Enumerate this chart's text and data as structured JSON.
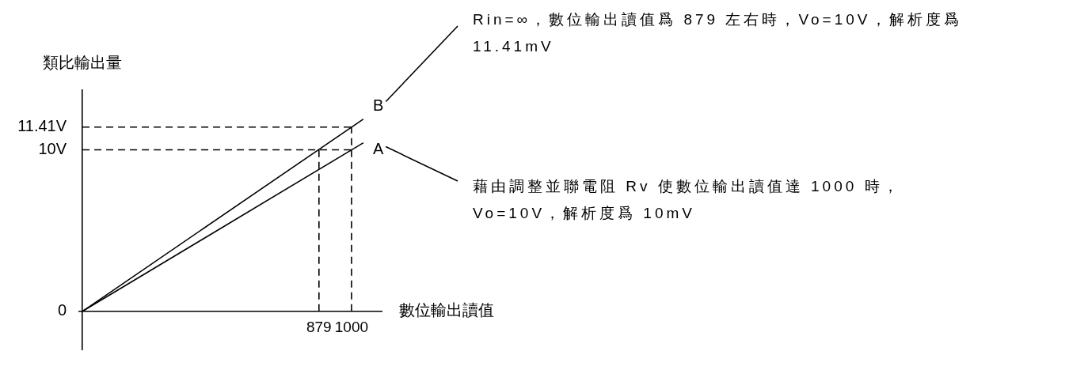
{
  "chart_data": {
    "type": "line",
    "xlabel": "數位輸出讀值",
    "ylabel": "類比輸出量",
    "xlim": [
      -12,
      1112
    ],
    "ylim": [
      -2.36,
      13.7
    ],
    "xticks": [
      879,
      1000
    ],
    "yticks": [
      0,
      {
        "value": 10,
        "label": "10V"
      },
      {
        "value": 11.41,
        "label": "11.41V"
      }
    ],
    "grid": false,
    "legend": false,
    "marker": "none",
    "tick_labels": "xy",
    "series": [
      {
        "name": "A",
        "color": "#000000",
        "line_style": "solid",
        "x": [
          0,
          1044
        ],
        "values": [
          0,
          10.44
        ]
      },
      {
        "name": "B",
        "color": "#000000",
        "line_style": "solid",
        "x": [
          0,
          1044
        ],
        "values": [
          0,
          11.91
        ]
      },
      {
        "color": "#000000",
        "line_style": "dashed",
        "x": [
          0,
          1000
        ],
        "values": [
          11.41,
          11.41
        ]
      },
      {
        "color": "#000000",
        "line_style": "dashed",
        "x": [
          0,
          1000
        ],
        "values": [
          10,
          10
        ]
      },
      {
        "color": "#000000",
        "line_style": "dashed",
        "x": [
          879,
          879
        ],
        "values": [
          0,
          10
        ]
      },
      {
        "color": "#000000",
        "line_style": "dashed",
        "x": [
          1000,
          1000
        ],
        "values": [
          0,
          11.41
        ]
      }
    ],
    "annotations": [
      "Rin=∞，數位輸出讀值爲 879 左右時，Vo=10V，解析度爲 11.41mV",
      "藉由調整並聯電阻 Rv 使數位輸出讀值達 1000 時，Vo=10V，解析度爲 10mV"
    ]
  }
}
